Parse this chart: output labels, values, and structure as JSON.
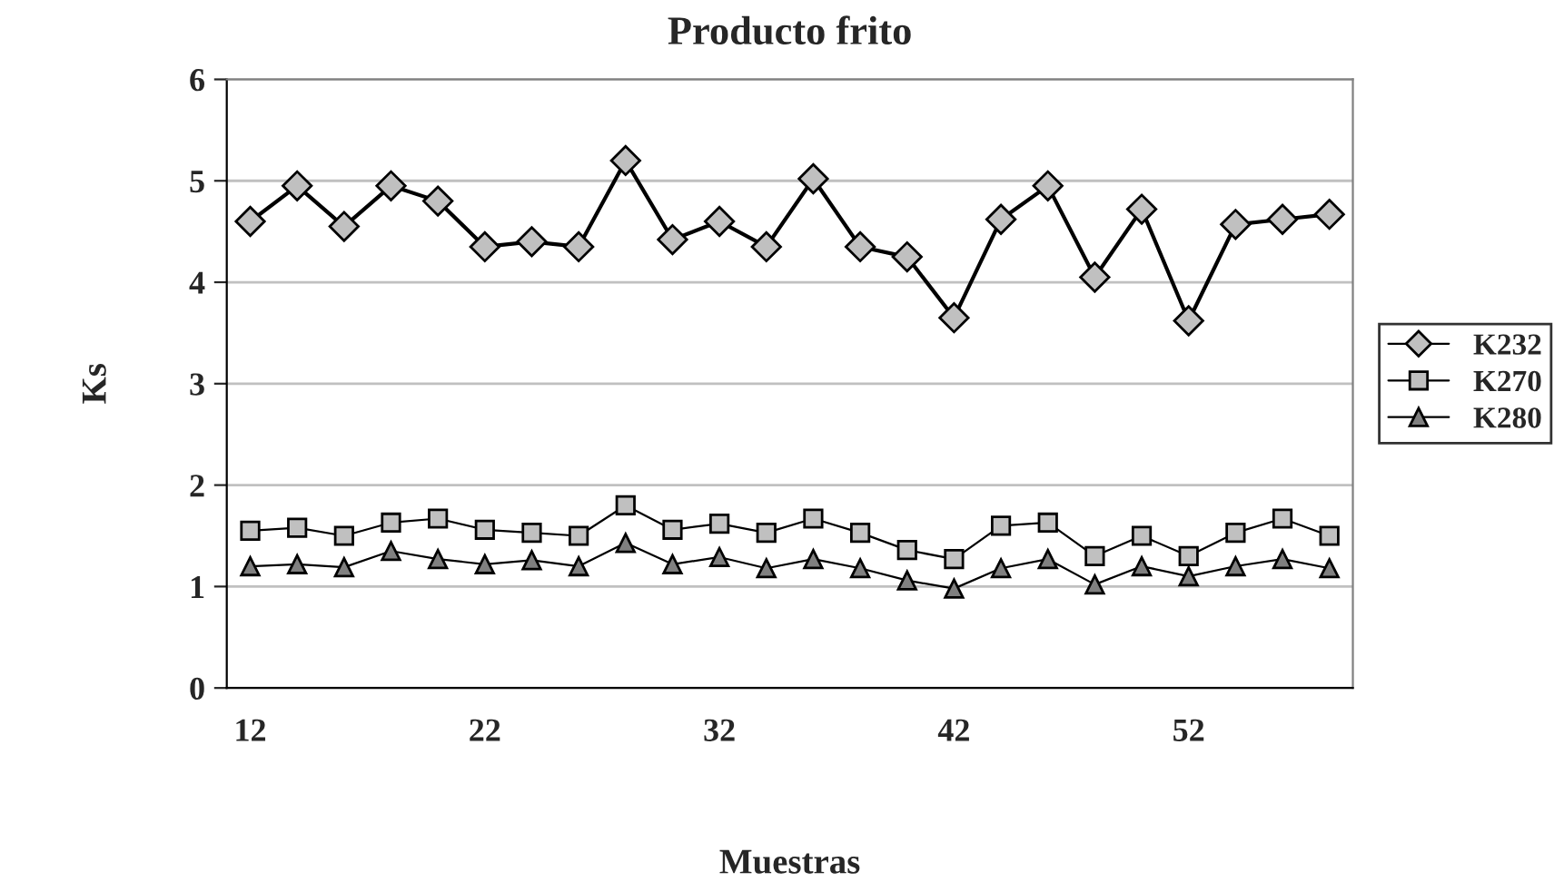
{
  "chart_data": {
    "type": "line",
    "title": "Producto frito",
    "xlabel": "Muestras",
    "ylabel": "Ks",
    "categories": [
      "12",
      null,
      null,
      null,
      null,
      "22",
      null,
      null,
      null,
      null,
      "32",
      null,
      null,
      null,
      null,
      "42",
      null,
      null,
      null,
      null,
      "52",
      null,
      null,
      null
    ],
    "series": [
      {
        "name": "K232",
        "color": "#000000",
        "marker": "diamond",
        "values": [
          4.6,
          4.95,
          4.55,
          4.95,
          4.8,
          4.35,
          4.4,
          4.35,
          5.2,
          4.42,
          4.6,
          4.35,
          5.02,
          4.35,
          4.25,
          3.65,
          4.62,
          4.95,
          4.05,
          4.72,
          3.62,
          4.57,
          4.62,
          4.67
        ]
      },
      {
        "name": "K270",
        "color": "#000000",
        "marker": "square",
        "values": [
          1.55,
          1.58,
          1.5,
          1.63,
          1.67,
          1.56,
          1.53,
          1.5,
          1.8,
          1.56,
          1.62,
          1.53,
          1.67,
          1.53,
          1.36,
          1.27,
          1.6,
          1.63,
          1.3,
          1.5,
          1.3,
          1.53,
          1.67,
          1.5
        ]
      },
      {
        "name": "K280",
        "color": "#000000",
        "marker": "triangle",
        "values": [
          1.2,
          1.22,
          1.19,
          1.35,
          1.27,
          1.22,
          1.26,
          1.2,
          1.43,
          1.22,
          1.29,
          1.18,
          1.27,
          1.18,
          1.06,
          0.98,
          1.18,
          1.27,
          1.02,
          1.2,
          1.1,
          1.2,
          1.27,
          1.18
        ]
      }
    ],
    "ylim": [
      0,
      6
    ],
    "yticks": [
      0,
      1,
      2,
      3,
      4,
      5,
      6
    ],
    "grid": "y",
    "legend": "right"
  }
}
